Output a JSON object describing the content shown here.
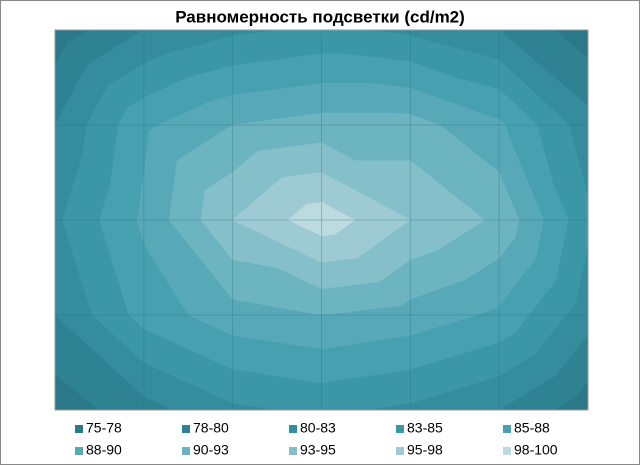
{
  "chart_data": {
    "type": "contour",
    "title": "Равномерность подсветки (cd/m2)",
    "z": [
      [
        76,
        80,
        82,
        83,
        82,
        80,
        76
      ],
      [
        80,
        87,
        90,
        91,
        91,
        88,
        81
      ],
      [
        82,
        88,
        95,
        99,
        95,
        92,
        83
      ],
      [
        80,
        86,
        89,
        90,
        89,
        87,
        81
      ],
      [
        76,
        79,
        82,
        83,
        82,
        80,
        76
      ]
    ],
    "levels": [
      75,
      77.5,
      80,
      82.5,
      85,
      87.5,
      90,
      92.5,
      95,
      97.5,
      100
    ],
    "series": [
      {
        "name": "75-78",
        "color": "#2b7888"
      },
      {
        "name": "78-80",
        "color": "#2f8292"
      },
      {
        "name": "80-83",
        "color": "#348c9c"
      },
      {
        "name": "83-85",
        "color": "#3b96a6"
      },
      {
        "name": "85-88",
        "color": "#47a0b0"
      },
      {
        "name": "88-90",
        "color": "#57a9b8"
      },
      {
        "name": "90-93",
        "color": "#6db4c1"
      },
      {
        "name": "93-95",
        "color": "#85c0ca"
      },
      {
        "name": "95-98",
        "color": "#9ecbd3"
      },
      {
        "name": "98-100",
        "color": "#bcdbe0"
      }
    ],
    "grid": true
  }
}
